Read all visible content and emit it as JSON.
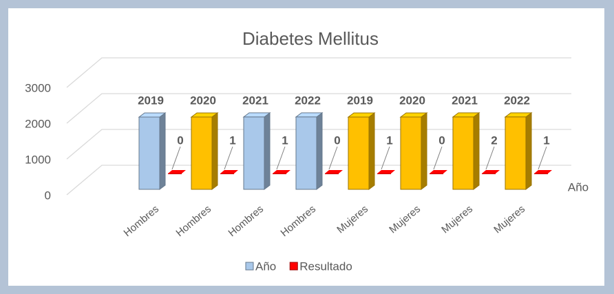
{
  "chart_data": {
    "type": "bar3d",
    "title": "Diabetes Mellitus",
    "categories": [
      "Hombres",
      "Hombres",
      "Hombres",
      "Hombres",
      "Mujeres",
      "Mujeres",
      "Mujeres",
      "Mujeres"
    ],
    "series": [
      {
        "name": "Año",
        "color": "#a9c8ea",
        "colors": [
          "#a9c8ea",
          "#ffc000",
          "#a9c8ea",
          "#a9c8ea",
          "#ffc000",
          "#ffc000",
          "#ffc000",
          "#ffc000"
        ],
        "values": [
          2019,
          2020,
          2021,
          2022,
          2019,
          2020,
          2021,
          2022
        ]
      },
      {
        "name": "Resultado",
        "color": "#ff0000",
        "values": [
          0,
          1,
          1,
          0,
          1,
          0,
          2,
          1
        ]
      }
    ],
    "depth_axis_label": "Año",
    "ylim": [
      0,
      3000
    ],
    "yticks": [
      0,
      1000,
      2000,
      3000
    ],
    "grid": true,
    "legend": "bottom"
  }
}
